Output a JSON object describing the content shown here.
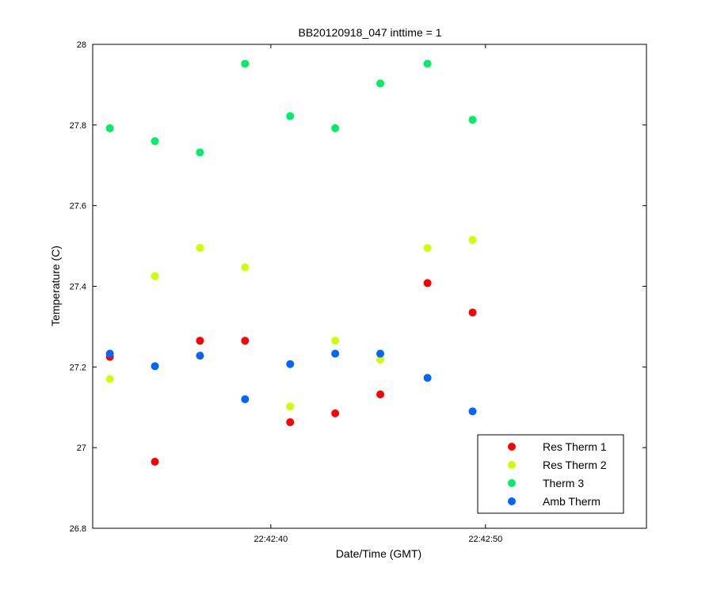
{
  "chart_data": {
    "type": "scatter",
    "title": "BB20120918_047 inttime = 1",
    "xlabel": "Date/Time (GMT)",
    "ylabel": "Temperature (C)",
    "x_unit": "time (HH:MM:SS)",
    "xlim": [
      "22:42:31.7",
      "22:42:57.5"
    ],
    "ylim": [
      26.8,
      28.0
    ],
    "x_ticks": [
      "22:42:40",
      "22:42:50"
    ],
    "y_ticks": [
      "26.8",
      "27",
      "27.2",
      "27.4",
      "27.6",
      "27.8",
      "28"
    ],
    "x": [
      "22:42:32.5",
      "22:42:34.6",
      "22:42:36.7",
      "22:42:38.8",
      "22:42:40.9",
      "22:42:43.0",
      "22:42:45.1",
      "22:42:47.3",
      "22:42:49.4"
    ],
    "series": [
      {
        "name": "Res Therm 1",
        "color": "#ff0000",
        "values": [
          27.225,
          26.965,
          27.265,
          27.265,
          27.063,
          27.085,
          27.132,
          27.408,
          27.335
        ]
      },
      {
        "name": "Res Therm 2",
        "color": "#ccff00",
        "values": [
          27.17,
          27.425,
          27.495,
          27.447,
          27.102,
          27.265,
          27.218,
          27.495,
          27.515
        ]
      },
      {
        "name": "Therm 3",
        "color": "#00ee66",
        "values": [
          27.792,
          27.76,
          27.732,
          27.952,
          27.822,
          27.792,
          27.903,
          27.952,
          27.813
        ]
      },
      {
        "name": "Amb Therm",
        "color": "#0066ff",
        "values": [
          27.233,
          27.202,
          27.228,
          27.12,
          27.207,
          27.233,
          27.233,
          27.173,
          27.09
        ]
      }
    ],
    "grid": false,
    "legend_position": "bottom-right"
  }
}
